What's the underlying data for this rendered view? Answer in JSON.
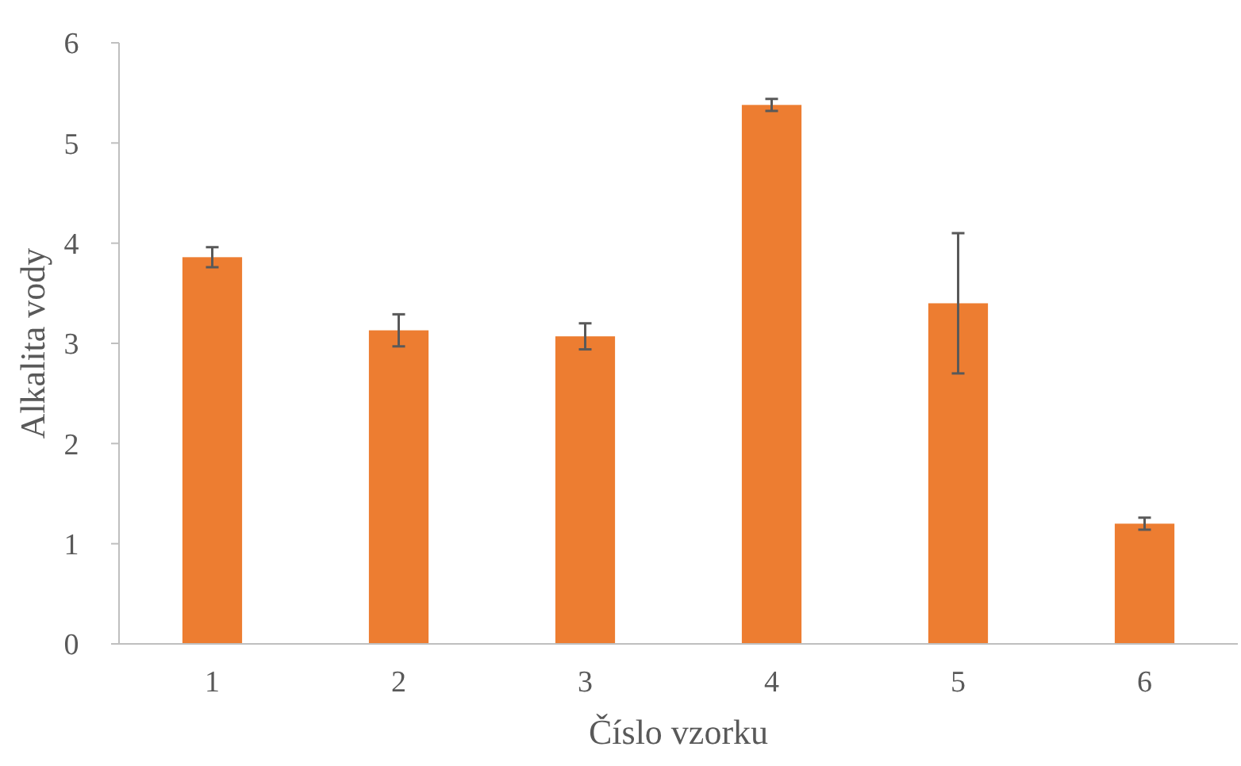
{
  "chart_data": {
    "type": "bar",
    "xlabel": "Číslo vzorku",
    "ylabel": "Alkalita vody",
    "categories": [
      "1",
      "2",
      "3",
      "4",
      "5",
      "6"
    ],
    "values": [
      3.86,
      3.13,
      3.07,
      5.38,
      3.4,
      1.2
    ],
    "errors": [
      0.1,
      0.16,
      0.13,
      0.06,
      0.7,
      0.06
    ],
    "color": "#ed7d31",
    "ylim": [
      0,
      6
    ],
    "yticks": [
      0,
      1,
      2,
      3,
      4,
      5,
      6
    ],
    "grid": false
  }
}
